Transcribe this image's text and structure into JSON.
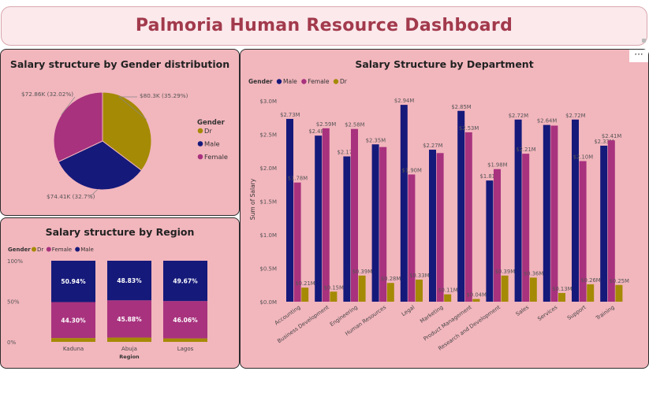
{
  "dashboard": {
    "title": "Palmoria Human Resource Dashboard",
    "more_label": "···"
  },
  "colors": {
    "male": "#15197a",
    "female": "#a8327e",
    "dr": "#a58a05",
    "panel": "#f2b6bd"
  },
  "gender_panel": {
    "title": "Salary structure by Gender distribution",
    "legend_title": "Gender",
    "legend": [
      "Dr",
      "Male",
      "Female"
    ],
    "slice_labels": [
      "$80.3K (35.29%)",
      "$74.41K (32.7%)",
      "$72.86K (32.02%)"
    ]
  },
  "region_panel": {
    "title": "Salary structure by Region",
    "legend_title": "Gender",
    "legend": [
      "Dr",
      "Female",
      "Male"
    ],
    "y_ticks": [
      "100%",
      "50%",
      "0%"
    ],
    "x_label": "Region"
  },
  "dept_panel": {
    "title": "Salary Structure by Department",
    "legend_title": "Gender",
    "legend": [
      "Male",
      "Female",
      "Dr"
    ],
    "y_label": "Sum of Salary",
    "y_ticks": [
      "$3.0M",
      "$2.5M",
      "$2.0M",
      "$1.5M",
      "$1.0M",
      "$0.5M",
      "$0.0M"
    ]
  },
  "chart_data": [
    {
      "type": "pie",
      "title": "Salary structure by Gender distribution",
      "labels": [
        "Dr",
        "Male",
        "Female"
      ],
      "values": [
        80.3,
        74.41,
        72.86
      ],
      "value_labels": [
        "$80.3K (35.29%)",
        "$74.41K (32.7%)",
        "$72.86K (32.02%)"
      ],
      "percents": [
        35.29,
        32.7,
        32.02
      ],
      "legend_title": "Gender",
      "legend_position": "right"
    },
    {
      "type": "bar",
      "stacked": "100%",
      "title": "Salary structure by Region",
      "categories": [
        "Kaduna",
        "Abuja",
        "Lagos"
      ],
      "xlabel": "Region",
      "series": [
        {
          "name": "Dr",
          "values": [
            4.72,
            5.29,
            4.27
          ]
        },
        {
          "name": "Female",
          "values": [
            44.3,
            45.88,
            46.06
          ],
          "labels": [
            "44.30%",
            "45.88%",
            "46.06%"
          ]
        },
        {
          "name": "Male",
          "values": [
            50.94,
            48.83,
            49.67
          ],
          "labels": [
            "50.94%",
            "48.83%",
            "49.67%"
          ]
        }
      ],
      "ylim": [
        0,
        100
      ],
      "legend_position": "top-left"
    },
    {
      "type": "bar",
      "title": "Salary Structure by Department",
      "categories": [
        "Accounting",
        "Business Development",
        "Engineering",
        "Human Resources",
        "Legal",
        "Marketing",
        "Product Management",
        "Research and Development",
        "Sales",
        "Services",
        "Support",
        "Training"
      ],
      "ylabel": "Sum of Salary",
      "series": [
        {
          "name": "Male",
          "values": [
            2.73,
            2.48,
            2.17,
            2.35,
            2.94,
            2.27,
            2.85,
            1.81,
            2.72,
            2.64,
            2.72,
            2.33
          ],
          "labels": [
            "$2.73M",
            "$2.48M",
            "$2.17M",
            "$2.35M",
            "$2.94M",
            "$2.27M",
            "$2.85M",
            "$1.81M",
            "$2.72M",
            "$2.64M",
            "$2.72M",
            "$2.33M"
          ]
        },
        {
          "name": "Female",
          "values": [
            1.78,
            2.59,
            2.58,
            2.31,
            1.9,
            2.22,
            2.53,
            1.98,
            2.21,
            2.63,
            2.1,
            2.41
          ],
          "labels": [
            "$1.78M",
            "$2.59M",
            "$2.58M",
            "",
            "$1.90M",
            "",
            "$2.53M",
            "$1.98M",
            "$2.21M",
            "",
            "$2.10M",
            "$2.41M"
          ]
        },
        {
          "name": "Dr",
          "values": [
            0.21,
            0.15,
            0.39,
            0.28,
            0.33,
            0.11,
            0.04,
            0.39,
            0.36,
            0.13,
            0.26,
            0.25
          ],
          "labels": [
            "$0.21M",
            "$0.15M",
            "$0.39M",
            "$0.28M",
            "$0.33M",
            "$0.11M",
            "$0.04M",
            "$0.39M",
            "$0.36M",
            "$0.13M",
            "$0.26M",
            "$0.25M"
          ]
        }
      ],
      "ylim": [
        0,
        3.0
      ],
      "grid": false,
      "legend_position": "top-left"
    }
  ]
}
